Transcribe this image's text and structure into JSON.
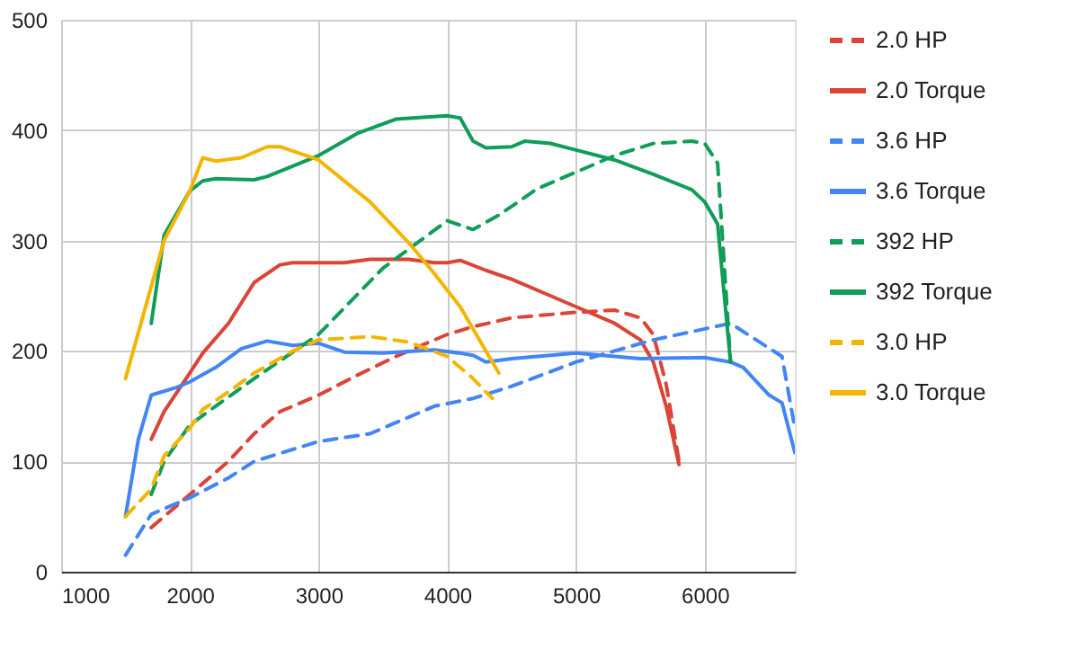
{
  "chart_data": {
    "type": "line",
    "xlim": [
      1000,
      6700
    ],
    "xticks": [
      1000,
      2000,
      3000,
      4000,
      5000,
      6000
    ],
    "ylim": [
      0,
      500
    ],
    "yticks": [
      0,
      100,
      200,
      300,
      400,
      500
    ],
    "grid": true,
    "legend": "right",
    "series": [
      {
        "name": "2.0 HP",
        "color": "#db4437",
        "line_style": "dashed",
        "x": [
          1700,
          2000,
          2300,
          2500,
          2700,
          3000,
          3300,
          3600,
          4000,
          4200,
          4500,
          5000,
          5300,
          5500,
          5600,
          5700,
          5800
        ],
        "values": [
          40,
          70,
          100,
          125,
          145,
          160,
          178,
          195,
          215,
          222,
          230,
          235,
          237,
          230,
          215,
          170,
          100
        ]
      },
      {
        "name": "2.0 Torque",
        "color": "#db4437",
        "line_style": "solid",
        "x": [
          1700,
          1800,
          2000,
          2100,
          2300,
          2500,
          2700,
          2800,
          3000,
          3200,
          3400,
          3700,
          3900,
          4000,
          4100,
          4300,
          4500,
          4800,
          5000,
          5300,
          5500,
          5600,
          5700,
          5800
        ],
        "values": [
          120,
          145,
          180,
          198,
          225,
          262,
          278,
          280,
          280,
          280,
          283,
          283,
          280,
          280,
          282,
          273,
          265,
          250,
          240,
          225,
          210,
          190,
          150,
          97
        ]
      },
      {
        "name": "3.6 HP",
        "color": "#4285f4",
        "line_style": "dashed",
        "x": [
          1500,
          1700,
          2000,
          2300,
          2500,
          3000,
          3400,
          3700,
          3900,
          4200,
          4500,
          5000,
          5300,
          5600,
          6000,
          6200,
          6400,
          6600,
          6700
        ],
        "values": [
          15,
          52,
          67,
          85,
          100,
          118,
          125,
          140,
          150,
          157,
          168,
          190,
          200,
          210,
          220,
          225,
          210,
          195,
          130
        ]
      },
      {
        "name": "3.6 Torque",
        "color": "#4285f4",
        "line_style": "solid",
        "x": [
          1500,
          1600,
          1700,
          1900,
          2000,
          2200,
          2400,
          2600,
          2800,
          3000,
          3200,
          3500,
          3900,
          4100,
          4200,
          4300,
          4500,
          5000,
          5200,
          5500,
          6000,
          6200,
          6300,
          6500,
          6600,
          6700
        ],
        "values": [
          50,
          120,
          160,
          167,
          172,
          185,
          202,
          209,
          205,
          207,
          199,
          198,
          201,
          198,
          196,
          190,
          193,
          198,
          196,
          193,
          194,
          190,
          185,
          160,
          153,
          108
        ]
      },
      {
        "name": "392 HP",
        "color": "#0f9d58",
        "line_style": "dashed",
        "x": [
          1700,
          1800,
          2000,
          2200,
          2500,
          3000,
          3500,
          4000,
          4200,
          4400,
          4700,
          5000,
          5300,
          5600,
          5900,
          6000,
          6100,
          6200
        ],
        "values": [
          70,
          100,
          133,
          150,
          175,
          215,
          275,
          318,
          310,
          323,
          347,
          362,
          377,
          388,
          390,
          388,
          370,
          190
        ]
      },
      {
        "name": "392 Torque",
        "color": "#0f9d58",
        "line_style": "solid",
        "x": [
          1700,
          1800,
          2000,
          2100,
          2200,
          2500,
          2600,
          3000,
          3300,
          3600,
          4000,
          4100,
          4200,
          4300,
          4500,
          4600,
          4800,
          5000,
          5300,
          5600,
          5900,
          6000,
          6100,
          6200
        ],
        "values": [
          225,
          305,
          345,
          354,
          356,
          355,
          358,
          377,
          397,
          410,
          413,
          411,
          390,
          384,
          385,
          390,
          388,
          382,
          373,
          360,
          346,
          335,
          315,
          190
        ]
      },
      {
        "name": "3.0 HP",
        "color": "#f4b400",
        "line_style": "dashed",
        "x": [
          1500,
          1700,
          1800,
          2000,
          2100,
          2300,
          2500,
          2800,
          3000,
          3400,
          3700,
          4000,
          4200,
          4350
        ],
        "values": [
          50,
          75,
          105,
          130,
          147,
          163,
          180,
          200,
          210,
          213,
          208,
          195,
          175,
          157
        ]
      },
      {
        "name": "3.0 Torque",
        "color": "#f4b400",
        "line_style": "solid",
        "x": [
          1500,
          1800,
          2000,
          2100,
          2200,
          2400,
          2600,
          2700,
          3000,
          3400,
          3700,
          3900,
          4100,
          4300,
          4400
        ],
        "values": [
          175,
          300,
          345,
          375,
          372,
          375,
          385,
          385,
          373,
          335,
          298,
          270,
          240,
          200,
          180
        ]
      }
    ]
  }
}
